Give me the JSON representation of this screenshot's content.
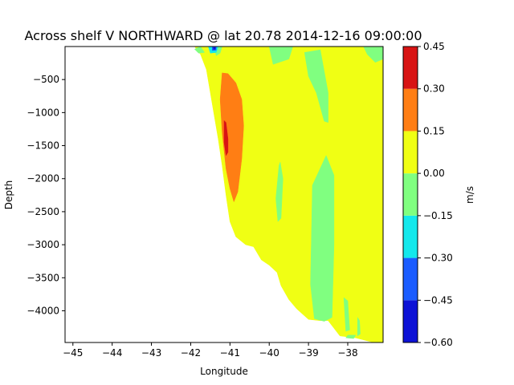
{
  "chart_data": {
    "type": "heatmap",
    "subtype": "filled-contour",
    "title": "Across shelf V NORTHWARD @ lat 20.78 2014-12-16 09:00:00",
    "xlabel": "Longitude",
    "ylabel": "Depth",
    "xlim": [
      -45.2,
      -37.1
    ],
    "ylim": [
      -4480,
      0
    ],
    "xticks": [
      -45,
      -44,
      -43,
      -42,
      -41,
      -40,
      -39,
      -38
    ],
    "xtick_labels": [
      "−45",
      "−44",
      "−43",
      "−42",
      "−41",
      "−40",
      "−39",
      "−38"
    ],
    "yticks": [
      -500,
      -1000,
      -1500,
      -2000,
      -2500,
      -3000,
      -3500,
      -4000
    ],
    "ytick_labels": [
      "−500",
      "−1000",
      "−1500",
      "−2000",
      "−2500",
      "−3000",
      "−3500",
      "−4000"
    ],
    "colorbar": {
      "label": "m/s",
      "levels": [
        -0.6,
        -0.45,
        -0.3,
        -0.15,
        0.0,
        0.15,
        0.3,
        0.45
      ],
      "tick_labels": [
        "−0.60",
        "−0.45",
        "−0.30",
        "−0.15",
        "0.00",
        "0.15",
        "0.30",
        "0.45"
      ],
      "colors": [
        "#0d12d6",
        "#1a5cff",
        "#14e8ec",
        "#80ff80",
        "#f0ff14",
        "#ff7e14",
        "#d81414"
      ]
    },
    "regions": [
      {
        "range": [
          0.0,
          0.15
        ],
        "color": "#f0ff14",
        "description": "background water column",
        "points": [
          [
            -41.9,
            0
          ],
          [
            -37.1,
            0
          ],
          [
            -37.1,
            -4480
          ],
          [
            -37.4,
            -4470
          ],
          [
            -37.6,
            -4440
          ],
          [
            -37.8,
            -4410
          ],
          [
            -38.2,
            -4380
          ],
          [
            -38.5,
            -4150
          ],
          [
            -38.7,
            -4150
          ],
          [
            -39.0,
            -4130
          ],
          [
            -39.3,
            -3970
          ],
          [
            -39.5,
            -3830
          ],
          [
            -39.7,
            -3620
          ],
          [
            -39.8,
            -3420
          ],
          [
            -40.0,
            -3310
          ],
          [
            -40.2,
            -3230
          ],
          [
            -40.4,
            -3030
          ],
          [
            -40.6,
            -3000
          ],
          [
            -40.85,
            -2880
          ],
          [
            -41.0,
            -2650
          ],
          [
            -41.1,
            -2250
          ],
          [
            -41.2,
            -1800
          ],
          [
            -41.3,
            -1400
          ],
          [
            -41.4,
            -1050
          ],
          [
            -41.5,
            -700
          ],
          [
            -41.6,
            -350
          ],
          [
            -41.75,
            -120
          ]
        ]
      },
      {
        "range": [
          -0.15,
          0.0
        ],
        "color": "#80ff80",
        "description": "shelf-edge patch",
        "points": [
          [
            -41.9,
            -40
          ],
          [
            -41.75,
            0
          ],
          [
            -41.65,
            -90
          ],
          [
            -41.8,
            -100
          ]
        ]
      },
      {
        "range": [
          -0.15,
          0.0
        ],
        "color": "#80ff80",
        "description": "upper negative band",
        "points": [
          [
            -41.4,
            0
          ],
          [
            -41.2,
            0
          ],
          [
            -41.25,
            -100
          ],
          [
            -41.35,
            -140
          ]
        ]
      },
      {
        "range": [
          -0.15,
          0.0
        ],
        "color": "#80ff80",
        "description": "near-surface negative patch",
        "points": [
          [
            -40.0,
            0
          ],
          [
            -39.4,
            0
          ],
          [
            -39.5,
            -190
          ],
          [
            -39.9,
            -270
          ]
        ]
      },
      {
        "range": [
          -0.15,
          0.0
        ],
        "color": "#80ff80",
        "description": "central negative column",
        "points": [
          [
            -39.1,
            -90
          ],
          [
            -38.7,
            -50
          ],
          [
            -38.5,
            -700
          ],
          [
            -38.5,
            -1150
          ],
          [
            -38.6,
            -1130
          ],
          [
            -38.8,
            -700
          ],
          [
            -39.0,
            -450
          ]
        ]
      },
      {
        "range": [
          -0.15,
          0.0
        ],
        "color": "#80ff80",
        "description": "eastern surface patch",
        "points": [
          [
            -37.6,
            0
          ],
          [
            -37.1,
            0
          ],
          [
            -37.1,
            -190
          ],
          [
            -37.3,
            -240
          ],
          [
            -37.5,
            -120
          ]
        ]
      },
      {
        "range": [
          -0.15,
          0.0
        ],
        "color": "#80ff80",
        "description": "narrow mid-depth filament",
        "points": [
          [
            -39.75,
            -1800
          ],
          [
            -39.72,
            -1750
          ],
          [
            -39.65,
            -2000
          ],
          [
            -39.7,
            -2600
          ],
          [
            -39.78,
            -2650
          ],
          [
            -39.83,
            -2300
          ]
        ]
      },
      {
        "range": [
          -0.15,
          0.0
        ],
        "color": "#80ff80",
        "description": "deep negative column",
        "points": [
          [
            -38.9,
            -2100
          ],
          [
            -38.55,
            -1650
          ],
          [
            -38.35,
            -1950
          ],
          [
            -38.35,
            -3000
          ],
          [
            -38.4,
            -4100
          ],
          [
            -38.6,
            -4160
          ],
          [
            -38.85,
            -4120
          ],
          [
            -38.95,
            -3600
          ]
        ]
      },
      {
        "range": [
          -0.15,
          0.0
        ],
        "color": "#80ff80",
        "description": "small deep filament",
        "points": [
          [
            -38.1,
            -3800
          ],
          [
            -38.0,
            -3850
          ],
          [
            -37.95,
            -4290
          ],
          [
            -38.05,
            -4310
          ]
        ]
      },
      {
        "range": [
          -0.15,
          0.0
        ],
        "color": "#80ff80",
        "description": "small deep filament",
        "points": [
          [
            -37.75,
            -4100
          ],
          [
            -37.7,
            -4150
          ],
          [
            -37.68,
            -4350
          ],
          [
            -37.75,
            -4380
          ]
        ]
      },
      {
        "range": [
          -0.15,
          0.0
        ],
        "color": "#80ff80",
        "description": "near-bottom patch",
        "points": [
          [
            -38.0,
            -4370
          ],
          [
            -37.8,
            -4370
          ],
          [
            -37.85,
            -4420
          ],
          [
            -38.05,
            -4410
          ]
        ]
      },
      {
        "range": [
          -0.3,
          -0.15
        ],
        "color": "#14e8ec",
        "description": "cyan core",
        "points": [
          [
            -41.55,
            0
          ],
          [
            -41.3,
            0
          ],
          [
            -41.35,
            -90
          ],
          [
            -41.5,
            -100
          ]
        ]
      },
      {
        "range": [
          -0.45,
          -0.3
        ],
        "color": "#1a5cff",
        "description": "blue core",
        "points": [
          [
            -41.45,
            -5
          ],
          [
            -41.35,
            -5
          ],
          [
            -41.35,
            -55
          ],
          [
            -41.45,
            -60
          ]
        ]
      },
      {
        "range": [
          -0.6,
          -0.45
        ],
        "color": "#0d12d6",
        "description": "dark blue core",
        "points": [
          [
            -41.42,
            -15
          ],
          [
            -41.37,
            -15
          ],
          [
            -41.37,
            -40
          ],
          [
            -41.42,
            -42
          ]
        ]
      },
      {
        "range": [
          0.15,
          0.3
        ],
        "color": "#ff7e14",
        "description": "slope current core",
        "points": [
          [
            -41.2,
            -400
          ],
          [
            -41.05,
            -410
          ],
          [
            -40.85,
            -550
          ],
          [
            -40.7,
            -800
          ],
          [
            -40.65,
            -1200
          ],
          [
            -40.7,
            -1700
          ],
          [
            -40.8,
            -2200
          ],
          [
            -40.9,
            -2350
          ],
          [
            -41.0,
            -2150
          ],
          [
            -41.1,
            -1850
          ],
          [
            -41.2,
            -1300
          ],
          [
            -41.25,
            -800
          ]
        ]
      },
      {
        "range": [
          0.3,
          0.45
        ],
        "color": "#d81414",
        "description": "slope current maximum",
        "points": [
          [
            -41.15,
            -1120
          ],
          [
            -41.1,
            -1150
          ],
          [
            -41.05,
            -1400
          ],
          [
            -41.05,
            -1600
          ],
          [
            -41.1,
            -1650
          ],
          [
            -41.15,
            -1450
          ]
        ]
      }
    ],
    "grid": false,
    "legend": "none"
  }
}
